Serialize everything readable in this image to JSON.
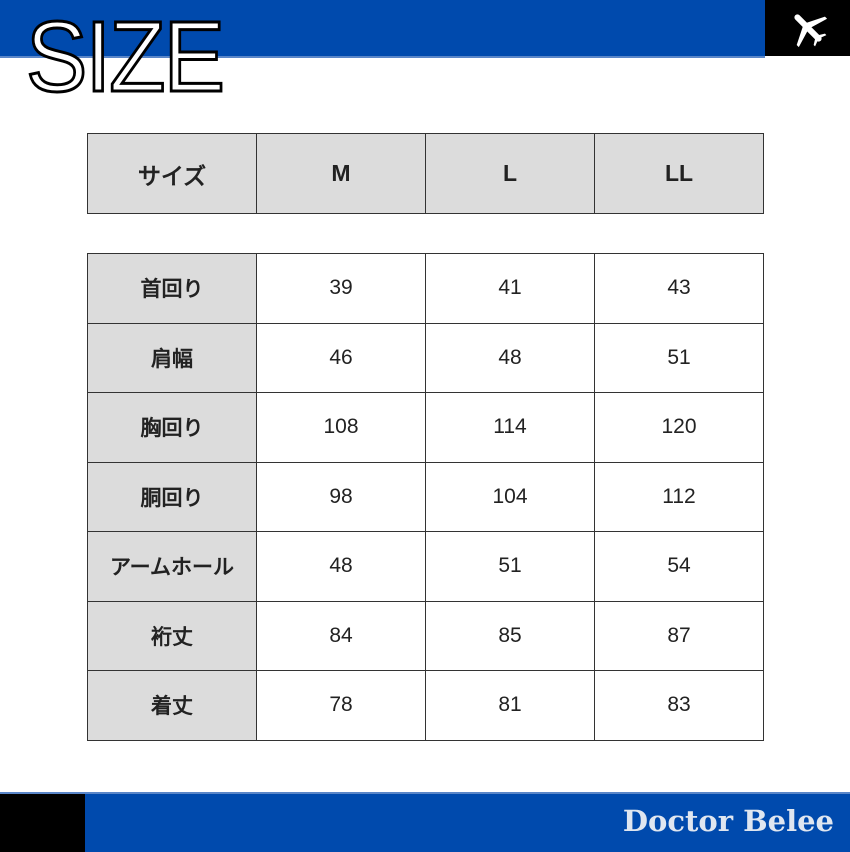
{
  "header": {
    "title": "SIZE",
    "icon": "airplane-icon",
    "accent": "#004aad"
  },
  "size_header": {
    "label": "サイズ",
    "sizes": [
      "M",
      "L",
      "LL"
    ]
  },
  "rows": [
    {
      "label": "首回り",
      "values": [
        "39",
        "41",
        "43"
      ]
    },
    {
      "label": "肩幅",
      "values": [
        "46",
        "48",
        "51"
      ]
    },
    {
      "label": "胸回り",
      "values": [
        "108",
        "114",
        "120"
      ]
    },
    {
      "label": "胴回り",
      "values": [
        "98",
        "104",
        "112"
      ]
    },
    {
      "label": "アームホール",
      "values": [
        "48",
        "51",
        "54"
      ]
    },
    {
      "label": "裄丈",
      "values": [
        "84",
        "85",
        "87"
      ]
    },
    {
      "label": "着丈",
      "values": [
        "78",
        "81",
        "83"
      ]
    }
  ],
  "footer": {
    "brand": "Doctor Belee"
  }
}
